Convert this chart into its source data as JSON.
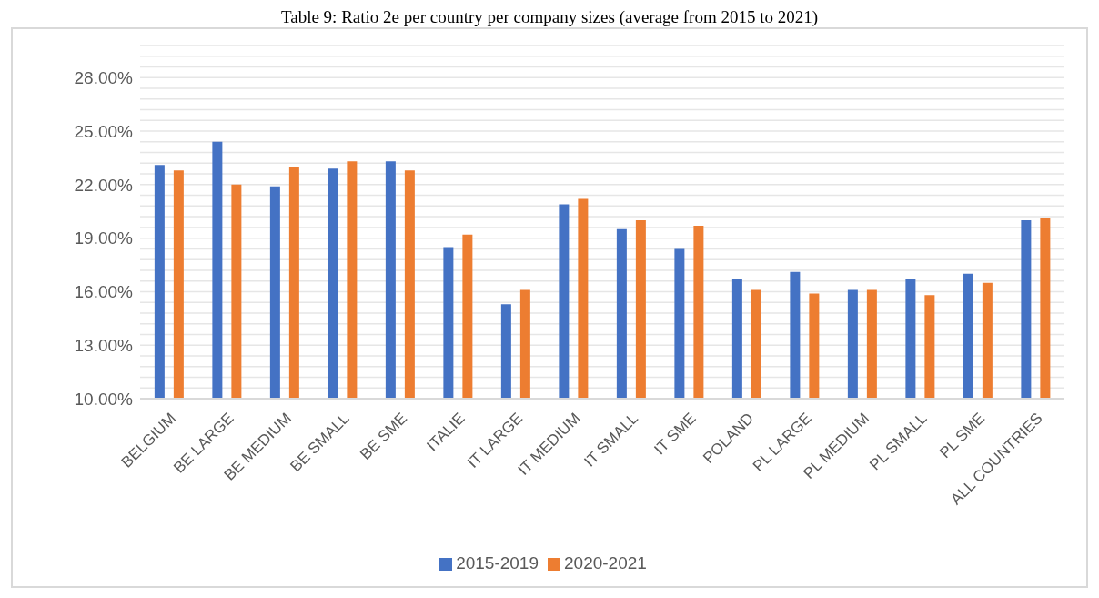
{
  "chart_data": {
    "type": "bar",
    "title": "Table 9: Ratio 2e per country per company sizes (average from 2015 to 2021)",
    "categories": [
      "BELGIUM",
      "BE LARGE",
      "BE MEDIUM",
      "BE SMALL",
      "BE SME",
      "ITALIE",
      "IT LARGE",
      "IT MEDIUM",
      "IT SMALL",
      "IT SME",
      "POLAND",
      "PL LARGE",
      "PL MEDIUM",
      "PL SMALL",
      "PL SME",
      "ALL COUNTRIES"
    ],
    "series": [
      {
        "name": "2015-2019",
        "color": "#4472c4",
        "values": [
          23.1,
          24.4,
          21.9,
          22.9,
          23.3,
          18.5,
          15.3,
          20.9,
          19.5,
          18.4,
          16.7,
          17.1,
          16.1,
          16.7,
          17.0,
          20.0
        ]
      },
      {
        "name": "2020-2021",
        "color": "#ed7d31",
        "values": [
          22.8,
          22.0,
          23.0,
          23.3,
          22.8,
          19.2,
          16.1,
          21.2,
          20.0,
          19.7,
          16.1,
          15.9,
          16.1,
          15.8,
          16.5,
          20.1
        ]
      }
    ],
    "ylim": [
      10,
      29.8
    ],
    "yticks": [
      {
        "value": 10,
        "label": "10.00%"
      },
      {
        "value": 10.6,
        "label": null
      },
      {
        "value": 11.2,
        "label": null
      },
      {
        "value": 11.8,
        "label": null
      },
      {
        "value": 12.4,
        "label": null
      },
      {
        "value": 13,
        "label": "13.00%"
      },
      {
        "value": 13.6,
        "label": null
      },
      {
        "value": 14.2,
        "label": null
      },
      {
        "value": 14.8,
        "label": null
      },
      {
        "value": 15.4,
        "label": null
      },
      {
        "value": 16,
        "label": "16.00%"
      },
      {
        "value": 16.6,
        "label": null
      },
      {
        "value": 17.2,
        "label": null
      },
      {
        "value": 17.8,
        "label": null
      },
      {
        "value": 18.4,
        "label": null
      },
      {
        "value": 19,
        "label": "19.00%"
      },
      {
        "value": 19.6,
        "label": null
      },
      {
        "value": 20.2,
        "label": null
      },
      {
        "value": 20.8,
        "label": null
      },
      {
        "value": 21.4,
        "label": null
      },
      {
        "value": 22,
        "label": "22.00%"
      },
      {
        "value": 22.6,
        "label": null
      },
      {
        "value": 23.2,
        "label": null
      },
      {
        "value": 23.8,
        "label": null
      },
      {
        "value": 24.4,
        "label": null
      },
      {
        "value": 25,
        "label": "25.00%"
      },
      {
        "value": 25.6,
        "label": null
      },
      {
        "value": 26.2,
        "label": null
      },
      {
        "value": 26.8,
        "label": null
      },
      {
        "value": 27.4,
        "label": null
      },
      {
        "value": 28,
        "label": "28.00%"
      },
      {
        "value": 28.6,
        "label": null
      },
      {
        "value": 29.2,
        "label": null
      },
      {
        "value": 29.8,
        "label": null
      }
    ],
    "grid": "y",
    "legend": "bottom"
  }
}
